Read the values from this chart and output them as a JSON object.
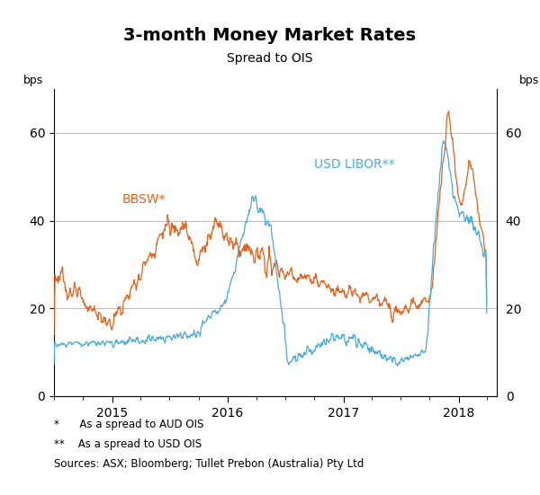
{
  "title": "3-month Money Market Rates",
  "subtitle": "Spread to OIS",
  "ylabel_left": "bps",
  "ylabel_right": "bps",
  "ylim": [
    0,
    70
  ],
  "yticks": [
    0,
    20,
    40,
    60
  ],
  "footnote1": "*      As a spread to AUD OIS",
  "footnote2": "**    As a spread to USD OIS",
  "footnote3": "Sources: ASX; Bloomberg; Tullet Prebon (Australia) Pty Ltd",
  "bbsw_label": "BBSW*",
  "libor_label": "USD LIBOR**",
  "bbsw_color": "#E8611A",
  "libor_color": "#4AABDB",
  "background_color": "#ffffff",
  "grid_color": "#c0c0c0",
  "title_fontsize": 14,
  "subtitle_fontsize": 10,
  "label_fontsize": 9,
  "footnote_fontsize": 8.5,
  "annot_fontsize": 10
}
